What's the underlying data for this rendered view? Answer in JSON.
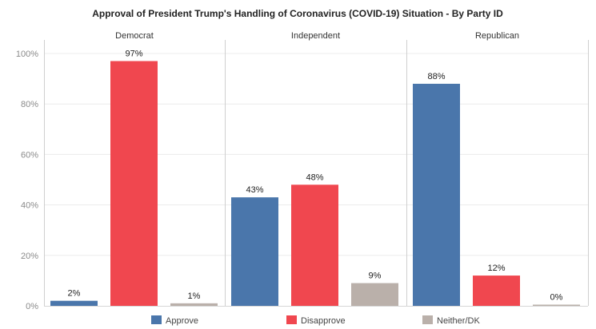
{
  "chart_data": {
    "type": "bar",
    "title": "Approval of President Trump's Handling of Coronavirus (COVID-19) Situation - By Party ID",
    "xlabel": "",
    "ylabel": "",
    "ylim": [
      0,
      100
    ],
    "y_ticks": [
      "0%",
      "20%",
      "40%",
      "60%",
      "80%",
      "100%"
    ],
    "y_tick_values": [
      0,
      20,
      40,
      60,
      80,
      100
    ],
    "panels": [
      "Democrat",
      "Independent",
      "Republican"
    ],
    "categories": [
      "Approve",
      "Disapprove",
      "Neither/DK"
    ],
    "series": [
      {
        "name": "Approve",
        "color": "#4a76ab",
        "values": [
          2,
          43,
          88
        ],
        "labels": [
          "2%",
          "43%",
          "88%"
        ]
      },
      {
        "name": "Disapprove",
        "color": "#f0474f",
        "values": [
          97,
          48,
          12
        ],
        "labels": [
          "97%",
          "48%",
          "12%"
        ]
      },
      {
        "name": "Neither/DK",
        "color": "#bab0aa",
        "values": [
          1,
          9,
          0
        ],
        "labels": [
          "1%",
          "9%",
          "0%"
        ]
      }
    ],
    "grid": true,
    "legend_position": "bottom"
  }
}
